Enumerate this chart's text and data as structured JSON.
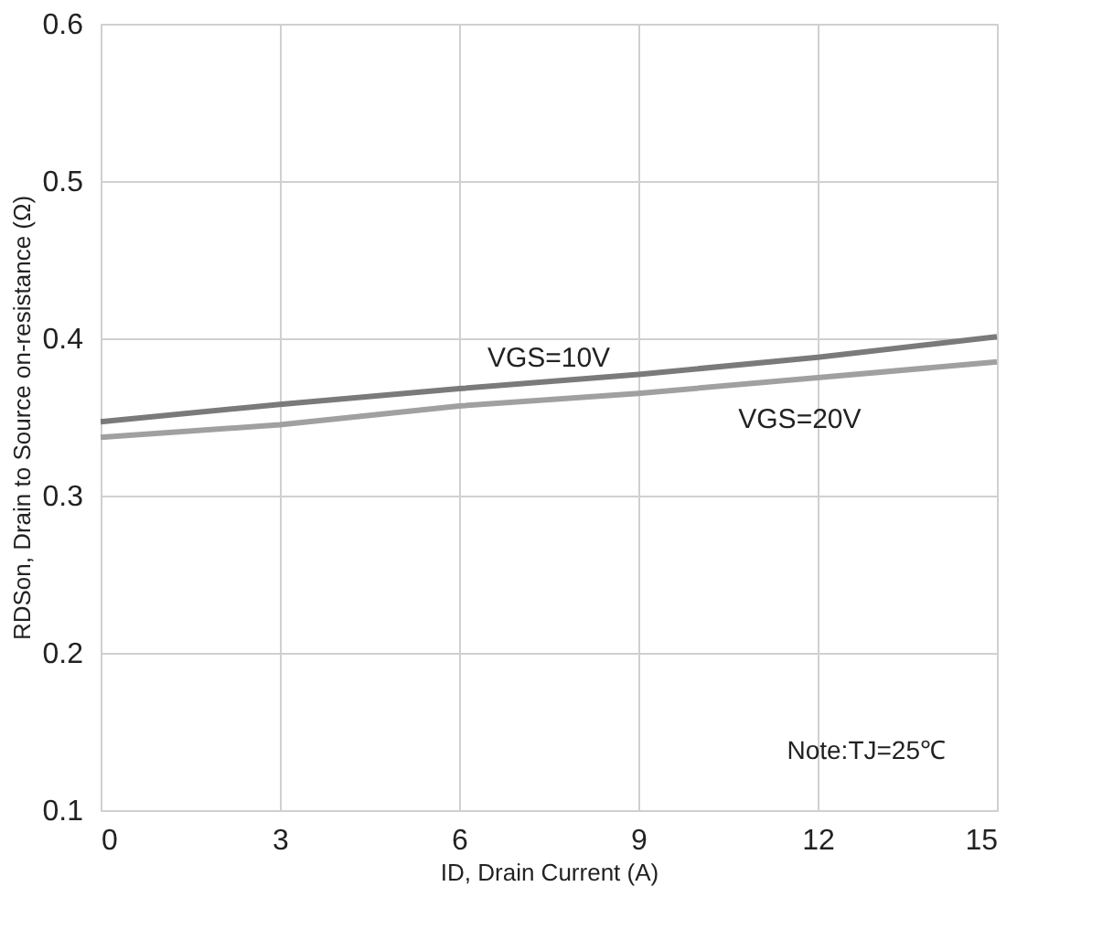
{
  "chart_data": {
    "type": "line",
    "xlabel": "ID, Drain Current (A)",
    "ylabel": "RDSon, Drain to Source on-resistance (Ω)",
    "x": [
      0,
      3,
      6,
      9,
      12,
      15
    ],
    "series": [
      {
        "name": "VGS=10V",
        "color": "#7a7a7a",
        "values": [
          0.347,
          0.358,
          0.368,
          0.377,
          0.388,
          0.401
        ]
      },
      {
        "name": "VGS=20V",
        "color": "#a0a0a0",
        "values": [
          0.337,
          0.345,
          0.357,
          0.365,
          0.375,
          0.385
        ]
      }
    ],
    "xlim": [
      0,
      15
    ],
    "xticks": [
      0,
      3,
      6,
      9,
      12,
      15
    ],
    "ylim": [
      0.1,
      0.6
    ],
    "yticks": [
      0.1,
      0.2,
      0.3,
      0.4,
      0.5,
      0.6
    ],
    "grid": true,
    "legend": false,
    "marker": "none",
    "line_style": "solid",
    "annotations": [
      "Note:TJ=25℃"
    ]
  }
}
